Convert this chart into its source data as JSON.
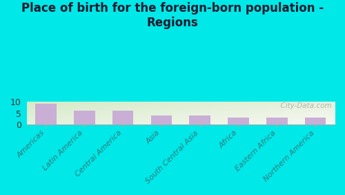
{
  "title": "Place of birth for the foreign-born population -\nRegions",
  "categories": [
    "Americas",
    "Latin America",
    "Central America",
    "Asia",
    "South Central Asia",
    "Africa",
    "Eastern Africa",
    "Northern America"
  ],
  "values": [
    9.0,
    6.0,
    6.0,
    4.0,
    4.0,
    3.0,
    3.0,
    3.0
  ],
  "bar_color": "#c9aed6",
  "background_outer": "#00e8e8",
  "background_plot_tl": "#d4ebc8",
  "background_plot_br": "#f8f8f2",
  "ylim": [
    0,
    10
  ],
  "yticks": [
    0,
    5,
    10
  ],
  "watermark": "  City-Data.com",
  "title_fontsize": 12,
  "tick_label_fontsize": 8,
  "ytick_fontsize": 9,
  "bar_width": 0.55
}
